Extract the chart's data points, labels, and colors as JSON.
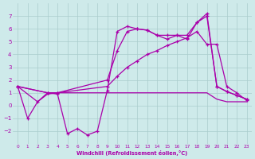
{
  "bg_color": "#ceeaea",
  "grid_color": "#aacccc",
  "line_color": "#aa00aa",
  "xlabel": "Windchill (Refroidissement éolien,°C)",
  "xlabel_color": "#aa00aa",
  "ylim": [
    -3,
    8
  ],
  "xlim": [
    -0.5,
    23.5
  ],
  "yticks": [
    -2,
    -1,
    0,
    1,
    2,
    3,
    4,
    5,
    6,
    7
  ],
  "xticks": [
    0,
    1,
    2,
    3,
    4,
    5,
    6,
    7,
    8,
    9,
    10,
    11,
    12,
    13,
    14,
    15,
    16,
    17,
    18,
    19,
    20,
    21,
    22,
    23
  ],
  "s1_x": [
    0,
    1,
    2,
    3,
    4,
    5,
    6,
    7,
    8,
    9,
    10,
    11,
    12,
    13,
    14,
    15,
    16,
    17,
    18,
    19,
    20,
    21,
    22,
    23
  ],
  "s1_y": [
    1.5,
    -1.0,
    0.3,
    1.0,
    0.9,
    -2.2,
    -1.8,
    -2.3,
    -2.0,
    1.2,
    5.8,
    6.2,
    6.0,
    5.9,
    5.5,
    5.2,
    5.5,
    5.2,
    6.5,
    7.0,
    1.5,
    1.1,
    0.8,
    0.5
  ],
  "s2_x": [
    0,
    2,
    3,
    4,
    9,
    10,
    11,
    12,
    13,
    14,
    15,
    16,
    17,
    18,
    19,
    20,
    21,
    22,
    23
  ],
  "s2_y": [
    1.5,
    0.3,
    0.9,
    1.0,
    1.0,
    1.0,
    1.0,
    1.0,
    1.0,
    1.0,
    1.0,
    1.0,
    1.0,
    1.0,
    1.0,
    0.5,
    0.3,
    0.3,
    0.3
  ],
  "s3_x": [
    0,
    3,
    4,
    9,
    10,
    11,
    12,
    13,
    14,
    15,
    16,
    17,
    18,
    19,
    20,
    21,
    22,
    23
  ],
  "s3_y": [
    1.5,
    1.0,
    1.0,
    2.0,
    4.3,
    5.8,
    6.0,
    5.9,
    5.5,
    5.5,
    5.5,
    5.5,
    6.5,
    7.2,
    1.5,
    1.1,
    0.8,
    0.5
  ],
  "s4_x": [
    0,
    3,
    4,
    9,
    10,
    11,
    12,
    13,
    14,
    15,
    16,
    17,
    18,
    19,
    20,
    21,
    22,
    23
  ],
  "s4_y": [
    1.5,
    1.0,
    1.0,
    1.5,
    2.3,
    3.0,
    3.5,
    4.0,
    4.3,
    4.7,
    5.0,
    5.3,
    5.8,
    4.8,
    4.8,
    1.5,
    1.0,
    0.4
  ]
}
